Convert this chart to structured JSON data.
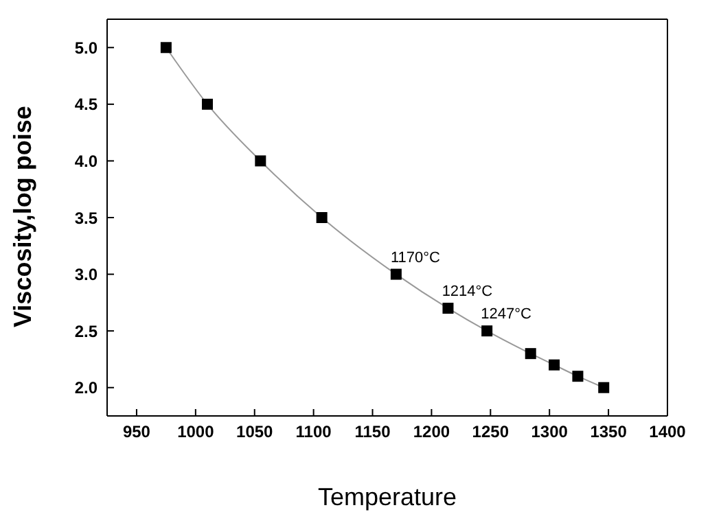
{
  "chart_data": {
    "type": "line",
    "xlabel": "Temperature",
    "ylabel": "Viscosity,log poise",
    "x": [
      975,
      1010,
      1055,
      1107,
      1170,
      1214,
      1247,
      1284,
      1304,
      1324,
      1346
    ],
    "series": [
      {
        "color": "#000000",
        "values": [
          5.0,
          4.5,
          4.0,
          3.5,
          3.0,
          2.7,
          2.5,
          2.3,
          2.2,
          2.1,
          2.0
        ]
      }
    ],
    "xlim": [
      925,
      1400
    ],
    "xticks": [
      950,
      1000,
      1050,
      1100,
      1150,
      1200,
      1250,
      1300,
      1350,
      1400
    ],
    "ylim": [
      1.75,
      5.25
    ],
    "yticks": [
      {
        "value": 2,
        "label": "2.0"
      },
      {
        "value": 2.5,
        "label": "2.5"
      },
      {
        "value": 3,
        "label": "3.0"
      },
      {
        "value": 3.5,
        "label": "3.5"
      },
      {
        "value": 4,
        "label": "4.0"
      },
      {
        "value": 4.5,
        "label": "4.5"
      },
      {
        "value": 5,
        "label": "5.0"
      }
    ],
    "annotations": [
      {
        "text": "1170°C",
        "x": 1170,
        "y": 3.0
      },
      {
        "text": "1214°C",
        "x": 1214,
        "y": 2.7
      },
      {
        "text": "1247°C",
        "x": 1247,
        "y": 2.5
      }
    ],
    "marker": "square",
    "line_style": "solid",
    "grid": false,
    "legend": false
  }
}
